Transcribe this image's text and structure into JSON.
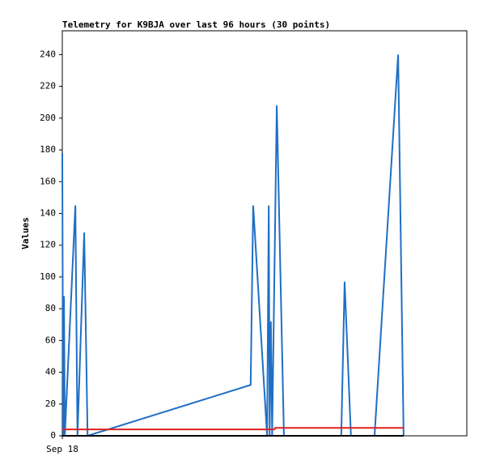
{
  "chart_data": {
    "type": "line",
    "title": "Telemetry for K9BJA over last 96 hours (30 points)",
    "y_label": "Values",
    "xlim": [
      0,
      96
    ],
    "xticks": [
      {
        "value": 0,
        "label": "Sep 18"
      }
    ],
    "ylim": [
      0,
      255
    ],
    "yticks": [
      0,
      20,
      40,
      60,
      80,
      100,
      120,
      140,
      160,
      180,
      200,
      220,
      240
    ],
    "series": [
      {
        "color": "#1f6fc5",
        "x": [
          0,
          0.2,
          0.4,
          0.6,
          3.1,
          3.6,
          5.2,
          6.0,
          44.7,
          45.3,
          48.6,
          49.0,
          49.2,
          49.5,
          49.8,
          50.9,
          52.6,
          66.2,
          67.0,
          68.5,
          74.1,
          79.7,
          81.0
        ],
        "values": [
          178,
          0,
          88,
          0,
          145,
          0,
          128,
          0,
          32,
          145,
          0,
          145,
          0,
          72,
          0,
          208,
          0,
          0,
          97,
          0,
          0,
          240,
          0
        ]
      },
      {
        "color": "#e02020",
        "x": [
          0,
          50.3,
          50.5,
          81.0
        ],
        "values": [
          4,
          4,
          5,
          5
        ]
      },
      {
        "color": "#000000",
        "x": [
          0,
          81.0
        ],
        "values": [
          0,
          0
        ]
      }
    ]
  }
}
